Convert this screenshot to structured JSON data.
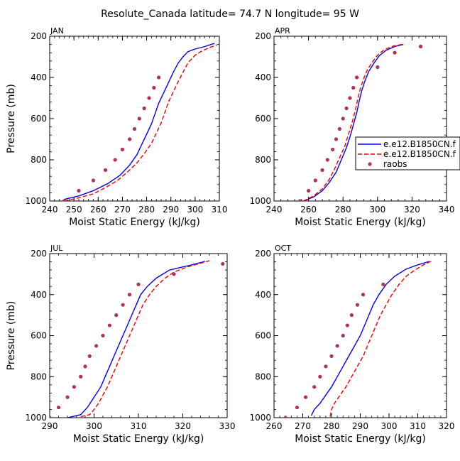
{
  "figure": {
    "title": "Resolute_Canada   latitude= 74.7 N longitude= 95 W"
  },
  "legend": {
    "entries": [
      {
        "label": "e.e12.B1850CN.f",
        "style": "solid",
        "color": "#0000ee"
      },
      {
        "label": "e.e12.B1850CN.f",
        "style": "dashed",
        "color": "#ee0000"
      },
      {
        "label": "raobs",
        "style": "dots",
        "color": "#b03060"
      }
    ]
  },
  "colors": {
    "model1": "#0000ee",
    "model2": "#ee0000",
    "obs": "#b03060"
  },
  "chart_data": [
    {
      "type": "line",
      "panel": "JAN",
      "xlabel": "Moist Static Energy (kJ/kg)",
      "ylabel": "Pressure (mb)",
      "xlim": [
        240,
        310
      ],
      "ylim": [
        1000,
        200
      ],
      "xticks": [
        240,
        250,
        260,
        270,
        280,
        290,
        300,
        310
      ],
      "yticks": [
        200,
        400,
        600,
        800,
        1000
      ],
      "series": [
        {
          "name": "e.e12.B1850CN.f",
          "style": "solid",
          "points": [
            [
              246,
              992
            ],
            [
              252,
              975
            ],
            [
              258,
              950
            ],
            [
              264,
              915
            ],
            [
              269,
              875
            ],
            [
              273,
              825
            ],
            [
              276,
              775
            ],
            [
              278,
              725
            ],
            [
              280,
              675
            ],
            [
              282,
              625
            ],
            [
              283.5,
              575
            ],
            [
              285,
              525
            ],
            [
              287,
              475
            ],
            [
              289,
              425
            ],
            [
              291,
              375
            ],
            [
              293,
              330
            ],
            [
              295,
              300
            ],
            [
              297,
              275
            ],
            [
              300,
              262
            ],
            [
              304,
              250
            ],
            [
              308,
              235
            ]
          ]
        },
        {
          "name": "e.e12.B1850CN.f",
          "style": "dashed",
          "points": [
            [
              246,
              1000
            ],
            [
              252,
              985
            ],
            [
              258,
              965
            ],
            [
              263,
              935
            ],
            [
              268,
              900
            ],
            [
              272,
              860
            ],
            [
              276,
              815
            ],
            [
              279,
              770
            ],
            [
              282,
              720
            ],
            [
              284,
              670
            ],
            [
              286,
              620
            ],
            [
              287.5,
              570
            ],
            [
              289,
              520
            ],
            [
              291,
              470
            ],
            [
              293,
              420
            ],
            [
              295,
              375
            ],
            [
              297,
              330
            ],
            [
              300,
              292
            ],
            [
              303,
              270
            ],
            [
              306,
              255
            ],
            [
              309,
              242
            ]
          ]
        },
        {
          "name": "raobs",
          "style": "dots",
          "points": [
            [
              246,
              1000
            ],
            [
              252,
              950
            ],
            [
              258,
              900
            ],
            [
              263,
              850
            ],
            [
              267,
              800
            ],
            [
              270,
              750
            ],
            [
              273,
              700
            ],
            [
              275,
              650
            ],
            [
              277,
              600
            ],
            [
              279,
              550
            ],
            [
              281,
              500
            ],
            [
              283,
              450
            ],
            [
              285,
              400
            ]
          ]
        }
      ]
    },
    {
      "type": "line",
      "panel": "APR",
      "xlabel": "Moist Static Energy (kJ/kg)",
      "ylabel": "",
      "xlim": [
        240,
        340
      ],
      "ylim": [
        1000,
        200
      ],
      "xticks": [
        240,
        260,
        280,
        300,
        320,
        340
      ],
      "yticks": [
        200,
        400,
        600,
        800,
        1000
      ],
      "series": [
        {
          "name": "e.e12.B1850CN.f",
          "style": "solid",
          "points": [
            [
              257,
              1000
            ],
            [
              263,
              980
            ],
            [
              268,
              950
            ],
            [
              272,
              910
            ],
            [
              276,
              860
            ],
            [
              279,
              800
            ],
            [
              282,
              740
            ],
            [
              284,
              690
            ],
            [
              286,
              630
            ],
            [
              288,
              570
            ],
            [
              289.5,
              510
            ],
            [
              291,
              460
            ],
            [
              293,
              410
            ],
            [
              295,
              370
            ],
            [
              298,
              330
            ],
            [
              301,
              295
            ],
            [
              305,
              268
            ],
            [
              310,
              250
            ],
            [
              315,
              240
            ]
          ]
        },
        {
          "name": "e.e12.B1850CN.f",
          "style": "dashed",
          "points": [
            [
              257,
              1000
            ],
            [
              263,
              975
            ],
            [
              268,
              940
            ],
            [
              272,
              895
            ],
            [
              275,
              845
            ],
            [
              278,
              790
            ],
            [
              281,
              735
            ],
            [
              283,
              680
            ],
            [
              285,
              625
            ],
            [
              287,
              565
            ],
            [
              288.5,
              505
            ],
            [
              290,
              455
            ],
            [
              292,
              405
            ],
            [
              294,
              365
            ],
            [
              297,
              325
            ],
            [
              300,
              292
            ],
            [
              304,
              265
            ],
            [
              309,
              248
            ],
            [
              315,
              238
            ]
          ]
        },
        {
          "name": "raobs",
          "style": "dots",
          "points": [
            [
              255,
              1000
            ],
            [
              260,
              950
            ],
            [
              264,
              900
            ],
            [
              268,
              850
            ],
            [
              271,
              800
            ],
            [
              274,
              750
            ],
            [
              276,
              700
            ],
            [
              278,
              650
            ],
            [
              280,
              600
            ],
            [
              282,
              550
            ],
            [
              284,
              500
            ],
            [
              286,
              450
            ],
            [
              288,
              400
            ],
            [
              300,
              350
            ],
            [
              310,
              280
            ],
            [
              325,
              250
            ]
          ]
        }
      ]
    },
    {
      "type": "line",
      "panel": "JUL",
      "xlabel": "Moist Static Energy (kJ/kg)",
      "ylabel": "Pressure (mb)",
      "xlim": [
        290,
        330
      ],
      "ylim": [
        1000,
        200
      ],
      "xticks": [
        290,
        300,
        310,
        320,
        330
      ],
      "yticks": [
        200,
        400,
        600,
        800,
        1000
      ],
      "series": [
        {
          "name": "e.e12.B1850CN.f",
          "style": "solid",
          "points": [
            [
              294,
              1000
            ],
            [
              297,
              985
            ],
            [
              298.5,
              950
            ],
            [
              300,
              900
            ],
            [
              301.5,
              850
            ],
            [
              302.5,
              800
            ],
            [
              303.5,
              750
            ],
            [
              304.5,
              700
            ],
            [
              305.5,
              650
            ],
            [
              306.5,
              600
            ],
            [
              307.5,
              550
            ],
            [
              308.5,
              500
            ],
            [
              309.5,
              450
            ],
            [
              310.5,
              400
            ],
            [
              312,
              360
            ],
            [
              314,
              320
            ],
            [
              317,
              280
            ],
            [
              322,
              255
            ],
            [
              325,
              238
            ]
          ]
        },
        {
          "name": "e.e12.B1850CN.f",
          "style": "dashed",
          "points": [
            [
              297,
              995
            ],
            [
              299,
              985
            ],
            [
              300,
              960
            ],
            [
              301,
              930
            ],
            [
              302,
              890
            ],
            [
              303,
              850
            ],
            [
              304,
              800
            ],
            [
              305,
              750
            ],
            [
              306,
              700
            ],
            [
              307,
              650
            ],
            [
              308,
              600
            ],
            [
              309,
              550
            ],
            [
              310,
              500
            ],
            [
              311,
              450
            ],
            [
              312.5,
              400
            ],
            [
              314,
              360
            ],
            [
              316,
              320
            ],
            [
              318,
              290
            ],
            [
              321,
              265
            ],
            [
              326,
              235
            ]
          ]
        },
        {
          "name": "raobs",
          "style": "dots",
          "points": [
            [
              290,
              1000
            ],
            [
              292,
              950
            ],
            [
              294,
              900
            ],
            [
              295.5,
              850
            ],
            [
              297,
              800
            ],
            [
              298,
              750
            ],
            [
              299,
              700
            ],
            [
              300.5,
              650
            ],
            [
              302,
              600
            ],
            [
              303.5,
              550
            ],
            [
              305,
              500
            ],
            [
              306.5,
              450
            ],
            [
              308,
              400
            ],
            [
              310,
              350
            ],
            [
              318,
              300
            ],
            [
              329,
              250
            ]
          ]
        }
      ]
    },
    {
      "type": "line",
      "panel": "OCT",
      "xlabel": "Moist Static Energy (kJ/kg)",
      "ylabel": "",
      "xlim": [
        260,
        320
      ],
      "ylim": [
        1000,
        200
      ],
      "xticks": [
        260,
        270,
        280,
        290,
        300,
        310,
        320
      ],
      "yticks": [
        200,
        400,
        600,
        800,
        1000
      ],
      "series": [
        {
          "name": "e.e12.B1850CN.f",
          "style": "solid",
          "points": [
            [
              273,
              990
            ],
            [
              274,
              960
            ],
            [
              276,
              930
            ],
            [
              278,
              890
            ],
            [
              280,
              850
            ],
            [
              282,
              800
            ],
            [
              284,
              750
            ],
            [
              286,
              700
            ],
            [
              288,
              650
            ],
            [
              290,
              600
            ],
            [
              291.5,
              550
            ],
            [
              293,
              500
            ],
            [
              294.5,
              450
            ],
            [
              296.5,
              400
            ],
            [
              299,
              350
            ],
            [
              302,
              310
            ],
            [
              306,
              275
            ],
            [
              310,
              255
            ],
            [
              314,
              238
            ]
          ]
        },
        {
          "name": "e.e12.B1850CN.f",
          "style": "dashed",
          "points": [
            [
              279.5,
              995
            ],
            [
              280,
              960
            ],
            [
              281,
              930
            ],
            [
              283,
              890
            ],
            [
              285,
              850
            ],
            [
              287,
              800
            ],
            [
              289,
              750
            ],
            [
              291,
              700
            ],
            [
              292.5,
              650
            ],
            [
              294,
              600
            ],
            [
              295.5,
              550
            ],
            [
              297,
              500
            ],
            [
              299,
              450
            ],
            [
              301,
              400
            ],
            [
              303.5,
              350
            ],
            [
              306,
              310
            ],
            [
              309,
              280
            ],
            [
              312,
              255
            ],
            [
              315,
              235
            ]
          ]
        },
        {
          "name": "raobs",
          "style": "dots",
          "points": [
            [
              264,
              1000
            ],
            [
              268,
              950
            ],
            [
              271,
              900
            ],
            [
              274,
              850
            ],
            [
              276,
              800
            ],
            [
              278,
              750
            ],
            [
              280,
              700
            ],
            [
              282,
              650
            ],
            [
              284,
              600
            ],
            [
              285.5,
              550
            ],
            [
              287,
              500
            ],
            [
              289,
              450
            ],
            [
              291,
              400
            ],
            [
              298,
              350
            ]
          ]
        }
      ]
    }
  ]
}
